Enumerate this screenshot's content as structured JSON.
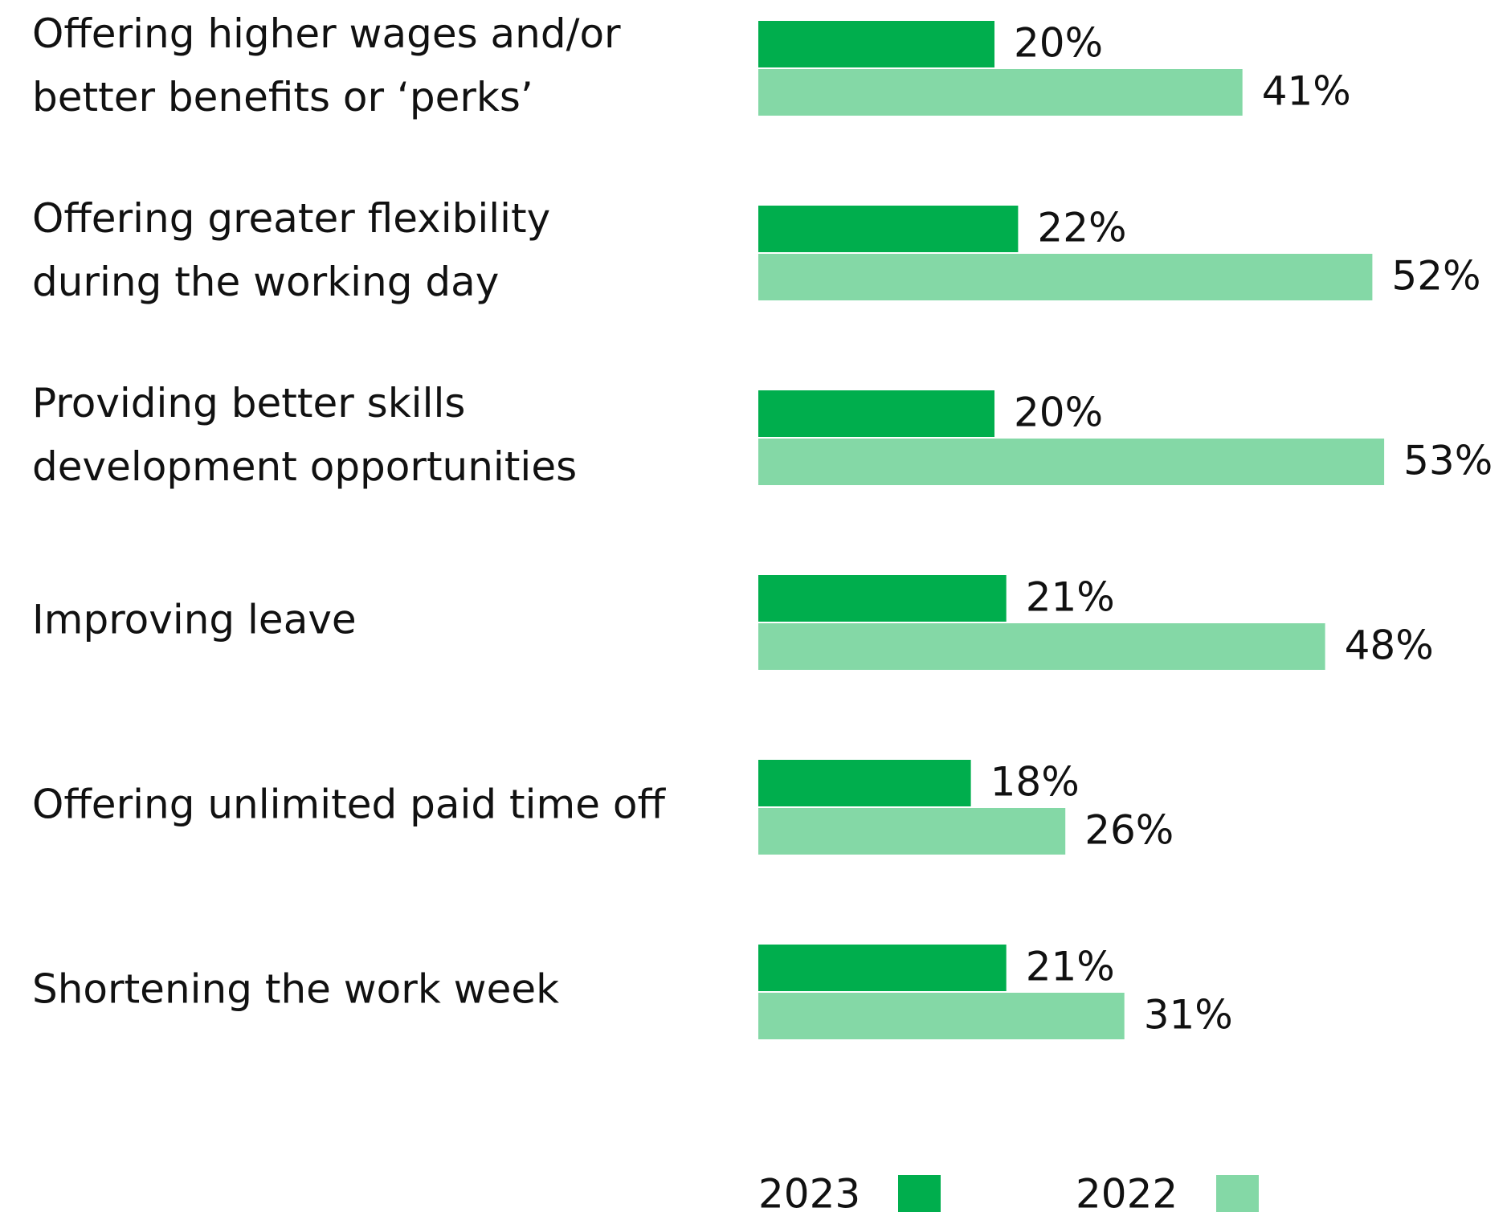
{
  "chart_data": {
    "type": "bar",
    "orientation": "horizontal",
    "categories": [
      [
        "Offering higher wages and/or",
        "better benefits or ‘perks’"
      ],
      [
        "Offering greater flexibility",
        "during the working day"
      ],
      [
        "Providing better skills",
        "development opportunities"
      ],
      [
        "Improving leave"
      ],
      [
        "Offering unlimited paid time off"
      ],
      [
        "Shortening the work week"
      ]
    ],
    "series": [
      {
        "name": "2023",
        "color": "#00ae4d",
        "values": [
          20,
          22,
          20,
          21,
          18,
          21
        ],
        "value_labels": [
          "20%",
          "22%",
          "20%",
          "21%",
          "18%",
          "21%"
        ]
      },
      {
        "name": "2022",
        "color": "#84d8a6",
        "values": [
          41,
          52,
          53,
          48,
          26,
          31
        ],
        "value_labels": [
          "41%",
          "52%",
          "53%",
          "48%",
          "26%",
          "31%"
        ]
      }
    ],
    "legend": "bottom"
  }
}
